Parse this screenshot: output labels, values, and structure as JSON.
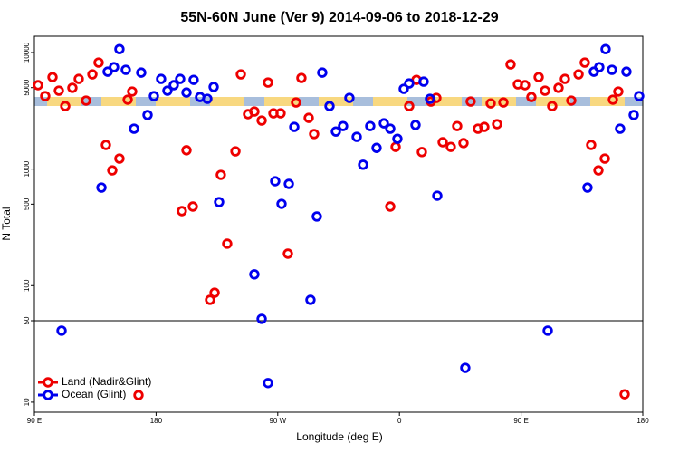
{
  "chart_data": {
    "type": "scatter",
    "title": "55N-60N June (Ver 9)   2014-09-06 to 2018-12-29",
    "x_label": "Longitude (deg E)",
    "y_label": "N Total",
    "ylog": true,
    "xlim": [
      90,
      540
    ],
    "ylim": [
      8.2,
      13800
    ],
    "xticks": [
      {
        "value": 90,
        "label": "90 E"
      },
      180,
      {
        "value": 270,
        "label": "90 W"
      },
      {
        "value": 360,
        "label": "0"
      },
      {
        "value": 450,
        "label": "90 E"
      },
      {
        "value": 540,
        "label": "180"
      }
    ],
    "yticks": [
      10,
      50,
      100,
      500,
      1000,
      5000,
      10000
    ],
    "hline": 50,
    "legend": "lower left",
    "series": [
      {
        "name": "Land (Nadir&Glint)",
        "color": "#ee0000",
        "x": [
          92.7,
          98.0,
          103.4,
          108.1,
          112.8,
          118.1,
          122.8,
          128.2,
          132.9,
          137.5,
          142.9,
          147.6,
          152.9,
          159.0,
          162.3,
          167.0,
          199.1,
          202.5,
          207.2,
          219.9,
          223.3,
          227.9,
          232.6,
          238.7,
          242.7,
          248.0,
          252.7,
          258.1,
          262.8,
          266.8,
          272.1,
          277.5,
          283.5,
          287.5,
          292.9,
          296.9,
          353.2,
          357.2,
          367.2,
          372.6,
          376.6,
          383.3,
          387.3,
          392.0,
          398.0,
          402.7,
          407.4,
          412.7,
          418.1,
          422.8,
          427.5,
          432.2,
          436.9,
          442.2,
          447.6,
          452.9,
          457.6,
          463.0,
          467.7,
          473.0,
          477.7,
          482.4,
          487.1,
          492.5,
          497.1,
          501.8,
          507.2,
          511.9,
          517.9,
          521.9,
          526.6
        ],
        "values": [
          5250,
          4230,
          6150,
          4710,
          3470,
          4980,
          5940,
          3870,
          6500,
          8200,
          1610,
          975,
          1230,
          3940,
          4630,
          11.5,
          436,
          1450,
          477,
          75.5,
          87,
          892,
          229,
          1420,
          6500,
          2960,
          3120,
          2610,
          5530,
          3010,
          3010,
          188,
          3730,
          6050,
          2750,
          2000,
          477,
          1550,
          3470,
          5830,
          1400,
          3800,
          4080,
          1700,
          1550,
          2340,
          1670,
          3800,
          2220,
          2300,
          3660,
          2430,
          3730,
          7910,
          5340,
          5250,
          4150,
          6150,
          4710,
          3470,
          4980,
          5940,
          3870,
          6500,
          8200,
          1610,
          975,
          1230,
          3940,
          4630,
          11.7
        ]
      },
      {
        "name": "Ocean (Glint)",
        "color": "#0000ee",
        "x": [
          110.1,
          139.6,
          144.2,
          148.9,
          152.9,
          157.6,
          163.7,
          169.0,
          173.7,
          178.4,
          183.7,
          188.4,
          193.1,
          197.8,
          202.5,
          207.8,
          212.5,
          217.9,
          222.6,
          226.6,
          252.7,
          258.1,
          262.8,
          268.1,
          272.8,
          278.2,
          282.2,
          294.2,
          298.9,
          302.9,
          308.3,
          313.0,
          318.3,
          323.0,
          328.4,
          333.1,
          338.4,
          343.1,
          348.5,
          353.2,
          358.5,
          363.2,
          367.2,
          371.9,
          377.9,
          382.6,
          388.0,
          408.7,
          469.7,
          499.1,
          503.8,
          507.8,
          512.5,
          517.2,
          523.2,
          527.9,
          533.3,
          537.3
        ],
        "values": [
          41.1,
          694,
          6850,
          7500,
          10700,
          7110,
          2220,
          6730,
          2910,
          4230,
          5940,
          4710,
          5250,
          5940,
          4540,
          5830,
          4150,
          4010,
          5070,
          521,
          125,
          51.9,
          14.6,
          787,
          503,
          746,
          2300,
          75.5,
          392,
          6730,
          3470,
          2100,
          2340,
          4080,
          1890,
          1090,
          2340,
          1520,
          2470,
          2220,
          1820,
          4880,
          5430,
          2390,
          5630,
          4010,
          591,
          19.7,
          41.1,
          694,
          6850,
          7500,
          10700,
          7110,
          2220,
          6850,
          2910,
          4230
        ]
      }
    ]
  }
}
